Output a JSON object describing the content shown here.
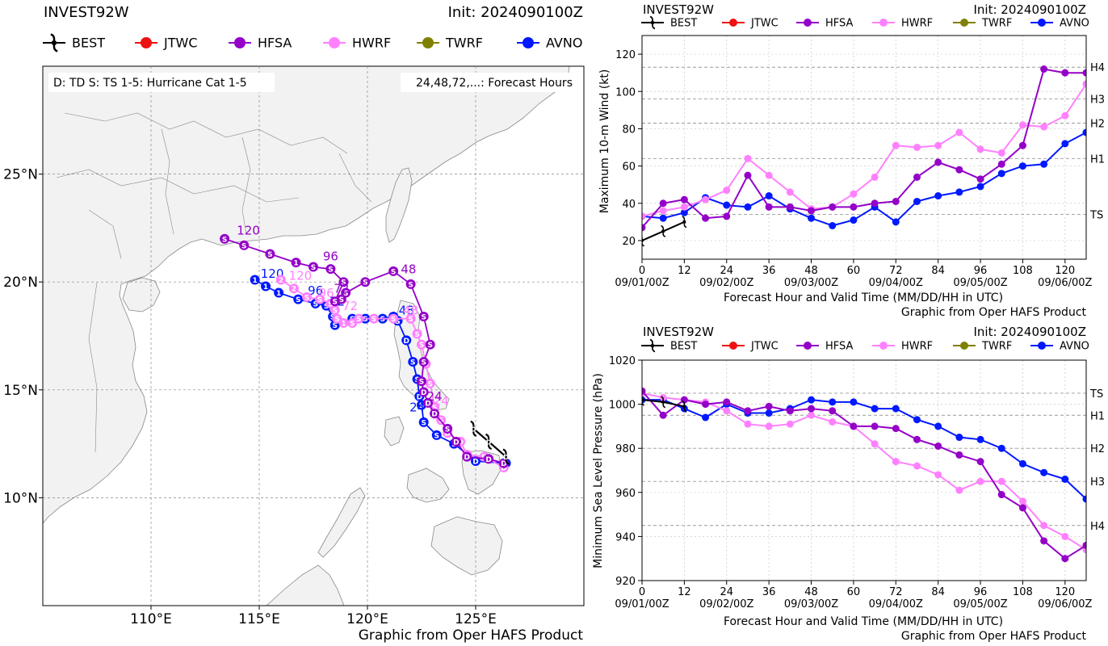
{
  "colors": {
    "best": "#000000",
    "jtwc": "#ee1111",
    "hfsa": "#9400c8",
    "hwrf": "#ff80ff",
    "twrf": "#808000",
    "avno": "#0018ff",
    "land": "#f2f2f2",
    "coast": "#888888"
  },
  "legend": [
    {
      "key": "best",
      "label": "BEST",
      "icon": "hurricane-icon"
    },
    {
      "key": "jtwc",
      "label": "JTWC",
      "icon": "dot-icon"
    },
    {
      "key": "hfsa",
      "label": "HFSA",
      "icon": "dot-icon"
    },
    {
      "key": "hwrf",
      "label": "HWRF",
      "icon": "dot-icon"
    },
    {
      "key": "twrf",
      "label": "TWRF",
      "icon": "dot-icon"
    },
    {
      "key": "avno",
      "label": "AVNO",
      "icon": "dot-icon"
    }
  ],
  "track_map": {
    "title": "INVEST92W",
    "init": "Init: 2024090100Z",
    "key_text": "D: TD  S: TS  1-5: Hurricane Cat 1-5",
    "forecast_hours_text": "24,48,72,...: Forecast Hours",
    "credit": "Graphic from Oper HAFS Product",
    "lon_range": [
      105,
      130
    ],
    "lat_range": [
      5,
      30
    ],
    "lon_ticks": [
      {
        "v": 110,
        "label": "110°E"
      },
      {
        "v": 115,
        "label": "115°E"
      },
      {
        "v": 120,
        "label": "120°E"
      },
      {
        "v": 125,
        "label": "125°E"
      }
    ],
    "lat_ticks": [
      {
        "v": 10,
        "label": "10°N"
      },
      {
        "v": 15,
        "label": "15°N"
      },
      {
        "v": 20,
        "label": "20°N"
      },
      {
        "v": 25,
        "label": "25°N"
      }
    ],
    "chart_data": {
      "type": "scatter",
      "series": [
        {
          "name": "BEST",
          "points": [
            [
              126.4,
              11.9,
              "D"
            ],
            [
              125.6,
              12.6,
              "D"
            ],
            [
              124.9,
              13.2,
              "D"
            ]
          ]
        },
        {
          "name": "HFSA",
          "points": [
            [
              126.3,
              11.6,
              "D"
            ],
            [
              125.6,
              11.8,
              "D"
            ],
            [
              124.6,
              11.9,
              "D"
            ],
            [
              124.1,
              12.6,
              "D"
            ],
            [
              123.7,
              13.2,
              "S"
            ],
            [
              123.1,
              13.9,
              "D"
            ],
            [
              122.8,
              14.4,
              "D"
            ],
            [
              122.6,
              14.9,
              "D"
            ],
            [
              122.5,
              15.4,
              "S"
            ],
            [
              122.6,
              16.3,
              "S"
            ],
            [
              122.9,
              17.1,
              "S"
            ],
            [
              122.6,
              18.4,
              "S"
            ],
            [
              122.0,
              19.9,
              "S"
            ],
            [
              121.2,
              20.5,
              "S"
            ],
            [
              119.9,
              20.0,
              "S"
            ],
            [
              119.0,
              19.5,
              "S"
            ],
            [
              118.8,
              19.2,
              "S"
            ],
            [
              118.5,
              19.1,
              "S"
            ],
            [
              118.9,
              20.0,
              "S"
            ],
            [
              118.3,
              20.6,
              "S"
            ],
            [
              117.5,
              20.7,
              "S"
            ],
            [
              116.7,
              20.9,
              "1"
            ],
            [
              115.5,
              21.3,
              "S"
            ],
            [
              114.3,
              21.7,
              "S"
            ],
            [
              113.4,
              22.0,
              "S"
            ]
          ],
          "labels": [
            {
              "lon": 123.1,
              "lat": 14.5,
              "text": "24"
            },
            {
              "lon": 121.9,
              "lat": 20.4,
              "text": "48"
            },
            {
              "lon": 118.8,
              "lat": 19.5,
              "text": "72"
            },
            {
              "lon": 118.3,
              "lat": 21.0,
              "text": "96"
            },
            {
              "lon": 114.5,
              "lat": 22.2,
              "text": "120"
            }
          ]
        },
        {
          "name": "HWRF",
          "points": [
            [
              126.3,
              11.4,
              "D"
            ],
            [
              125.4,
              11.9,
              "D"
            ],
            [
              124.6,
              12.0,
              "D"
            ],
            [
              124.3,
              12.6,
              "D"
            ],
            [
              123.7,
              13.0,
              "D"
            ],
            [
              123.4,
              13.6,
              "S"
            ],
            [
              123.1,
              14.2,
              "S"
            ],
            [
              122.9,
              15.3,
              "S"
            ],
            [
              122.7,
              16.2,
              "S"
            ],
            [
              122.5,
              17.1,
              "S"
            ],
            [
              122.3,
              17.6,
              "S"
            ],
            [
              122.0,
              18.3,
              "S"
            ],
            [
              121.2,
              18.3,
              "S"
            ],
            [
              120.3,
              18.3,
              "S"
            ],
            [
              119.6,
              18.3,
              "S"
            ],
            [
              119.3,
              18.1,
              "S"
            ],
            [
              118.9,
              18.1,
              "1"
            ],
            [
              118.6,
              18.3,
              "S"
            ],
            [
              118.5,
              18.7,
              "S"
            ],
            [
              118.3,
              19.0,
              "S"
            ],
            [
              117.8,
              19.2,
              "S"
            ],
            [
              117.2,
              19.3,
              "S"
            ],
            [
              116.6,
              19.7,
              "2"
            ],
            [
              116.0,
              20.1,
              "2"
            ]
          ],
          "labels": [
            {
              "lon": 123.4,
              "lat": 14.3,
              "text": "24"
            },
            {
              "lon": 122.0,
              "lat": 18.5,
              "text": "48"
            },
            {
              "lon": 119.2,
              "lat": 18.7,
              "text": "72"
            },
            {
              "lon": 118.1,
              "lat": 19.3,
              "text": "96"
            },
            {
              "lon": 116.9,
              "lat": 20.1,
              "text": "120"
            }
          ]
        },
        {
          "name": "AVNO",
          "points": [
            [
              126.4,
              11.6,
              "D"
            ],
            [
              125.0,
              11.7,
              "D"
            ],
            [
              124.0,
              12.5,
              "S"
            ],
            [
              123.2,
              12.9,
              "S"
            ],
            [
              122.6,
              13.5,
              "S"
            ],
            [
              122.5,
              14.3,
              "S"
            ],
            [
              122.4,
              14.7,
              "D"
            ],
            [
              122.3,
              15.5,
              "S"
            ],
            [
              122.1,
              16.3,
              "S"
            ],
            [
              121.8,
              17.3,
              "D"
            ],
            [
              121.4,
              18.2,
              "S"
            ],
            [
              121.2,
              18.4,
              "S"
            ],
            [
              120.7,
              18.3,
              "S"
            ],
            [
              119.9,
              18.3,
              "S"
            ],
            [
              119.3,
              18.3,
              "S"
            ],
            [
              118.5,
              18.0,
              "S"
            ],
            [
              118.4,
              18.4,
              "S"
            ],
            [
              118.1,
              18.9,
              "S"
            ],
            [
              117.6,
              19.0,
              "S"
            ],
            [
              116.8,
              19.2,
              "S"
            ],
            [
              115.9,
              19.5,
              "1"
            ],
            [
              115.3,
              19.8,
              "1"
            ],
            [
              114.8,
              20.1,
              "1"
            ]
          ],
          "labels": [
            {
              "lon": 122.3,
              "lat": 14.0,
              "text": "24"
            },
            {
              "lon": 121.8,
              "lat": 18.5,
              "text": "48"
            },
            {
              "lon": 118.6,
              "lat": 18.9,
              "text": "72"
            },
            {
              "lon": 117.6,
              "lat": 19.4,
              "text": "96"
            },
            {
              "lon": 115.6,
              "lat": 20.2,
              "text": "120"
            }
          ]
        }
      ]
    }
  },
  "wind_chart": {
    "title": "INVEST92W",
    "init": "Init: 2024090100Z",
    "ylabel": "Maximum 10-m Wind (kt)",
    "xlabel": "Forecast Hour and Valid Time (MM/DD/HH in UTC)",
    "credit": "Graphic from Oper HAFS Product",
    "chart_data": {
      "type": "line",
      "xlim": [
        0,
        126
      ],
      "ylim": [
        10,
        130
      ],
      "yticks": [
        20,
        40,
        60,
        80,
        100,
        120
      ],
      "xticks": [
        0,
        12,
        24,
        36,
        48,
        60,
        72,
        84,
        96,
        108,
        120
      ],
      "date_labels": [
        {
          "x": 0,
          "label": "09/01/00Z"
        },
        {
          "x": 24,
          "label": "09/02/00Z"
        },
        {
          "x": 48,
          "label": "09/03/00Z"
        },
        {
          "x": 72,
          "label": "09/04/00Z"
        },
        {
          "x": 96,
          "label": "09/05/00Z"
        },
        {
          "x": 120,
          "label": "09/06/00Z"
        }
      ],
      "thresholds": [
        {
          "y": 34,
          "label": "TS"
        },
        {
          "y": 64,
          "label": "H1"
        },
        {
          "y": 83,
          "label": "H2"
        },
        {
          "y": 96,
          "label": "H3"
        },
        {
          "y": 113,
          "label": "H4"
        }
      ],
      "series": [
        {
          "name": "BEST",
          "x": [
            0,
            6,
            12
          ],
          "values": [
            20,
            25,
            30
          ]
        },
        {
          "name": "HFSA",
          "x": [
            0,
            6,
            12,
            18,
            24,
            30,
            36,
            42,
            48,
            54,
            60,
            66,
            72,
            78,
            84,
            90,
            96,
            102,
            108,
            114,
            120,
            126
          ],
          "values": [
            27,
            40,
            42,
            32,
            33,
            55,
            38,
            38,
            36,
            38,
            38,
            40,
            41,
            54,
            62,
            58,
            53,
            61,
            71,
            112,
            110,
            110
          ]
        },
        {
          "name": "HWRF",
          "x": [
            0,
            6,
            12,
            18,
            24,
            30,
            36,
            42,
            48,
            54,
            60,
            66,
            72,
            78,
            84,
            90,
            96,
            102,
            108,
            114,
            120,
            126
          ],
          "values": [
            33,
            36,
            38,
            42,
            47,
            64,
            55,
            46,
            37,
            38,
            45,
            54,
            71,
            70,
            71,
            78,
            69,
            67,
            82,
            81,
            87,
            104
          ]
        },
        {
          "name": "AVNO",
          "x": [
            0,
            6,
            12,
            18,
            24,
            30,
            36,
            42,
            48,
            54,
            60,
            66,
            72,
            78,
            84,
            90,
            96,
            102,
            108,
            114,
            120,
            126
          ],
          "values": [
            33,
            32,
            35,
            43,
            39,
            38,
            44,
            37,
            32,
            28,
            31,
            38,
            30,
            41,
            44,
            46,
            49,
            56,
            60,
            61,
            72,
            78
          ]
        }
      ]
    }
  },
  "pressure_chart": {
    "title": "INVEST92W",
    "init": "Init: 2024090100Z",
    "ylabel": "Minimum Sea Level Pressure (hPa)",
    "xlabel": "Forecast Hour and Valid Time (MM/DD/HH in UTC)",
    "credit": "Graphic from Oper HAFS Product",
    "chart_data": {
      "type": "line",
      "xlim": [
        0,
        126
      ],
      "ylim": [
        920,
        1020
      ],
      "yticks": [
        920,
        940,
        960,
        980,
        1000,
        1020
      ],
      "xticks": [
        0,
        12,
        24,
        36,
        48,
        60,
        72,
        84,
        96,
        108,
        120
      ],
      "date_labels": [
        {
          "x": 0,
          "label": "09/01/00Z"
        },
        {
          "x": 24,
          "label": "09/02/00Z"
        },
        {
          "x": 48,
          "label": "09/03/00Z"
        },
        {
          "x": 72,
          "label": "09/04/00Z"
        },
        {
          "x": 96,
          "label": "09/05/00Z"
        },
        {
          "x": 120,
          "label": "09/06/00Z"
        }
      ],
      "thresholds": [
        {
          "y": 1005,
          "label": "TS"
        },
        {
          "y": 995,
          "label": "H1"
        },
        {
          "y": 980,
          "label": "H2"
        },
        {
          "y": 965,
          "label": "H3"
        },
        {
          "y": 945,
          "label": "H4"
        }
      ],
      "series": [
        {
          "name": "BEST",
          "x": [
            0,
            6,
            12
          ],
          "values": [
            1002,
            1001,
            999
          ]
        },
        {
          "name": "HFSA",
          "x": [
            0,
            6,
            12,
            18,
            24,
            30,
            36,
            42,
            48,
            54,
            60,
            66,
            72,
            78,
            84,
            90,
            96,
            102,
            108,
            114,
            120,
            126
          ],
          "values": [
            1006,
            995,
            1002,
            1000,
            1001,
            997,
            999,
            997,
            998,
            997,
            990,
            990,
            989,
            984,
            981,
            977,
            974,
            959,
            953,
            938,
            930,
            936
          ]
        },
        {
          "name": "HWRF",
          "x": [
            0,
            6,
            12,
            18,
            24,
            30,
            36,
            42,
            48,
            54,
            60,
            66,
            72,
            78,
            84,
            90,
            96,
            102,
            108,
            114,
            120,
            126
          ],
          "values": [
            1005,
            1003,
            1002,
            1001,
            997,
            991,
            990,
            991,
            995,
            992,
            990,
            982,
            974,
            972,
            968,
            961,
            965,
            965,
            956,
            945,
            940,
            934
          ]
        },
        {
          "name": "AVNO",
          "x": [
            0,
            6,
            12,
            18,
            24,
            30,
            36,
            42,
            48,
            54,
            60,
            66,
            72,
            78,
            84,
            90,
            96,
            102,
            108,
            114,
            120,
            126
          ],
          "values": [
            1002,
            1002,
            998,
            994,
            1000,
            996,
            996,
            998,
            1002,
            1001,
            1001,
            998,
            998,
            993,
            990,
            985,
            984,
            980,
            973,
            969,
            966,
            957
          ]
        }
      ]
    }
  }
}
